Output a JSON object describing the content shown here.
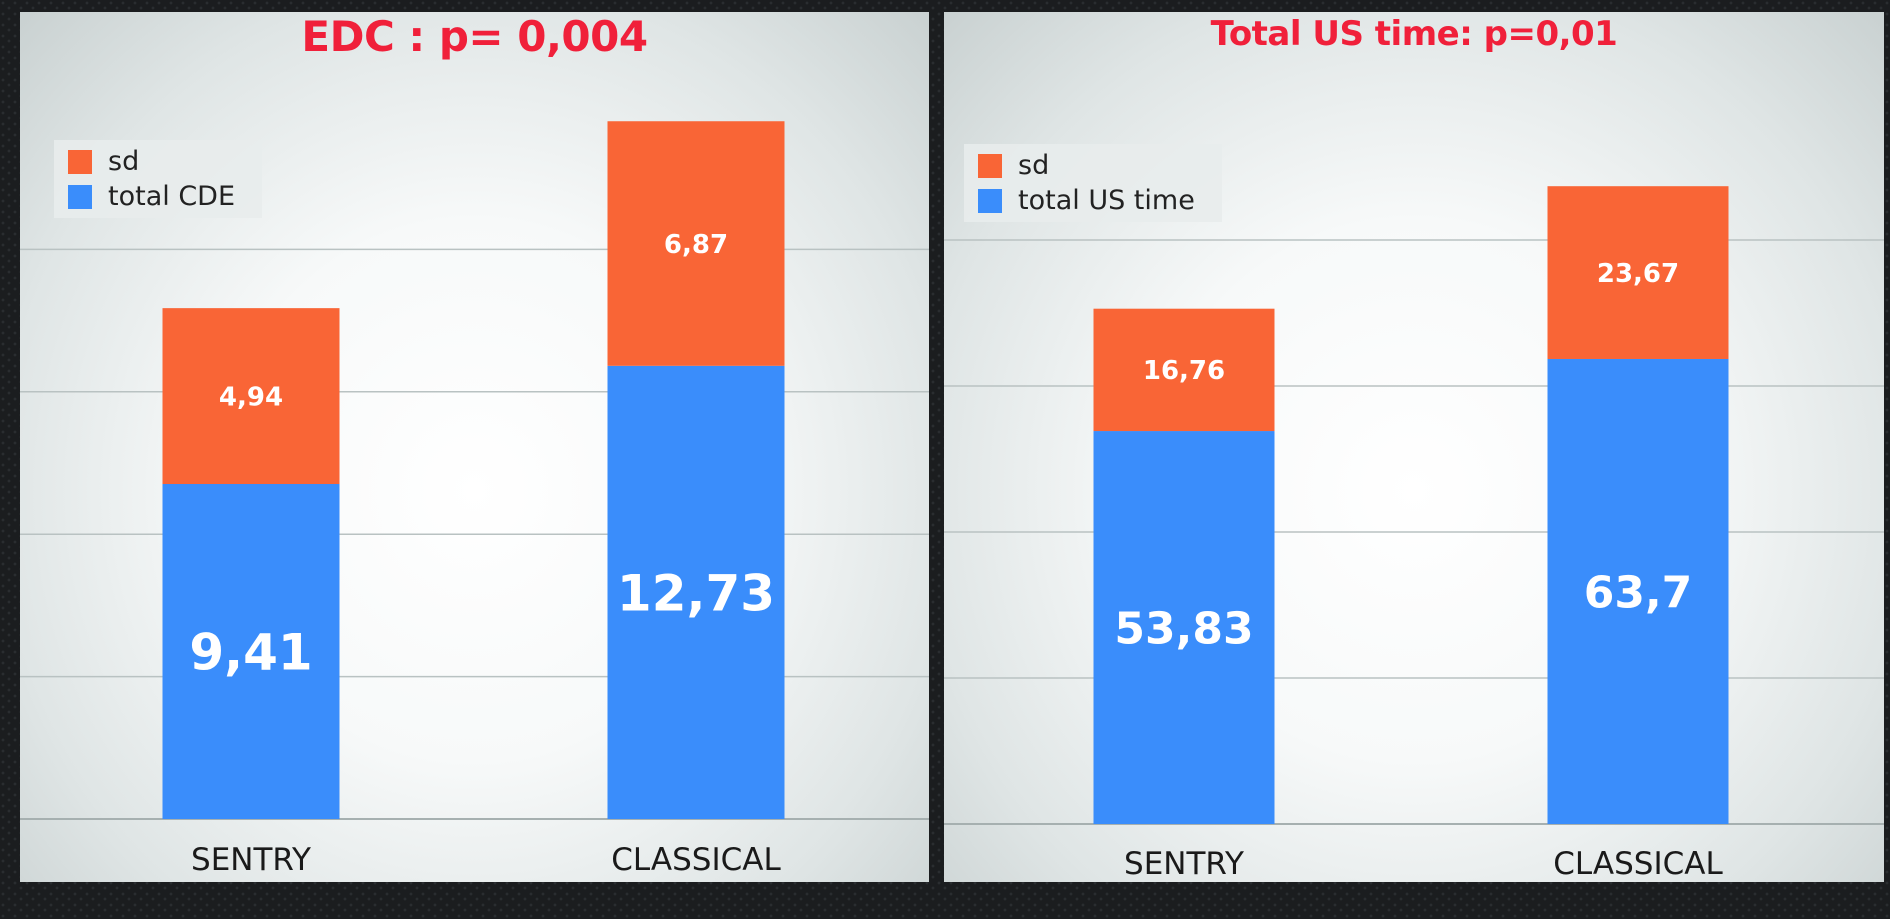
{
  "chart_data": [
    {
      "type": "bar",
      "stacked": true,
      "title": "EDC : p= 0,004",
      "categories": [
        "SENTRY",
        "CLASSICAL"
      ],
      "series": [
        {
          "name": "total CDE",
          "values": [
            9.41,
            12.73
          ],
          "labels": [
            "9,41",
            "12,73"
          ],
          "color": "#3a8dfb"
        },
        {
          "name": "sd",
          "values": [
            4.94,
            6.87
          ],
          "labels": [
            "4,94",
            "6,87"
          ],
          "color": "#f96536"
        }
      ],
      "legend": "top-left",
      "ylim": [
        0,
        20
      ],
      "grid": true,
      "gridlines": 4
    },
    {
      "type": "bar",
      "stacked": true,
      "title": "Total US time:  p=0,01",
      "categories": [
        "SENTRY",
        "CLASSICAL"
      ],
      "series": [
        {
          "name": "total US time",
          "values": [
            53.83,
            63.7
          ],
          "labels": [
            "53,83",
            "63,7"
          ],
          "color": "#3a8dfb"
        },
        {
          "name": "sd",
          "values": [
            16.76,
            23.67
          ],
          "labels": [
            "16,76",
            "23,67"
          ],
          "color": "#f96536"
        }
      ],
      "legend": "top-left",
      "ylim": [
        0,
        100
      ],
      "grid": true,
      "gridlines": 4
    }
  ]
}
